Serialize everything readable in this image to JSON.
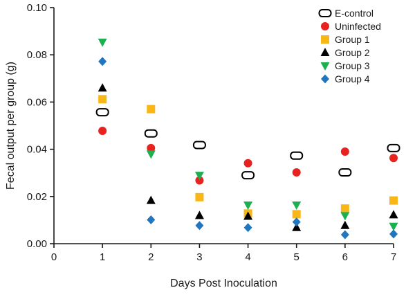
{
  "chart_data": {
    "type": "scatter",
    "title": "",
    "xlabel": "Days Post Inoculation",
    "ylabel": "Fecal output per group (g)",
    "xlim": [
      0,
      7
    ],
    "ylim": [
      0,
      0.1
    ],
    "x_ticks": [
      "0",
      "1",
      "2",
      "3",
      "4",
      "5",
      "6",
      "7"
    ],
    "y_ticks": [
      "0.00",
      "0.02",
      "0.04",
      "0.06",
      "0.08",
      "0.10"
    ],
    "grid": false,
    "legend_position": "top-right",
    "x": [
      1,
      2,
      3,
      4,
      5,
      6,
      7
    ],
    "series": [
      {
        "name": "E-control",
        "marker": "hollow-rounded-rect",
        "color": "#000000",
        "values": [
          0.0557,
          0.0467,
          0.0418,
          0.029,
          0.0373,
          0.0302,
          0.0405
        ]
      },
      {
        "name": "Uninfected",
        "marker": "circle",
        "color": "#e8231f",
        "values": [
          0.0478,
          0.0405,
          0.0268,
          0.0341,
          0.0302,
          0.039,
          0.0363
        ]
      },
      {
        "name": "Group 1",
        "marker": "square",
        "color": "#f8b716",
        "values": [
          0.0612,
          0.057,
          0.0197,
          0.0128,
          0.0125,
          0.0149,
          0.0183
        ]
      },
      {
        "name": "Group 2",
        "marker": "triangle-up",
        "color": "#000000",
        "values": [
          0.0659,
          0.0183,
          0.0119,
          0.0116,
          0.0068,
          0.0077,
          0.0122
        ]
      },
      {
        "name": "Group 3",
        "marker": "triangle-down",
        "color": "#1cb050",
        "values": [
          0.0854,
          0.038,
          0.029,
          0.0164,
          0.0164,
          0.0119,
          0.0074
        ]
      },
      {
        "name": "Group 4",
        "marker": "diamond",
        "color": "#2176c0",
        "values": [
          0.0772,
          0.0101,
          0.0077,
          0.0068,
          0.0092,
          0.0038,
          0.0041
        ]
      }
    ]
  }
}
